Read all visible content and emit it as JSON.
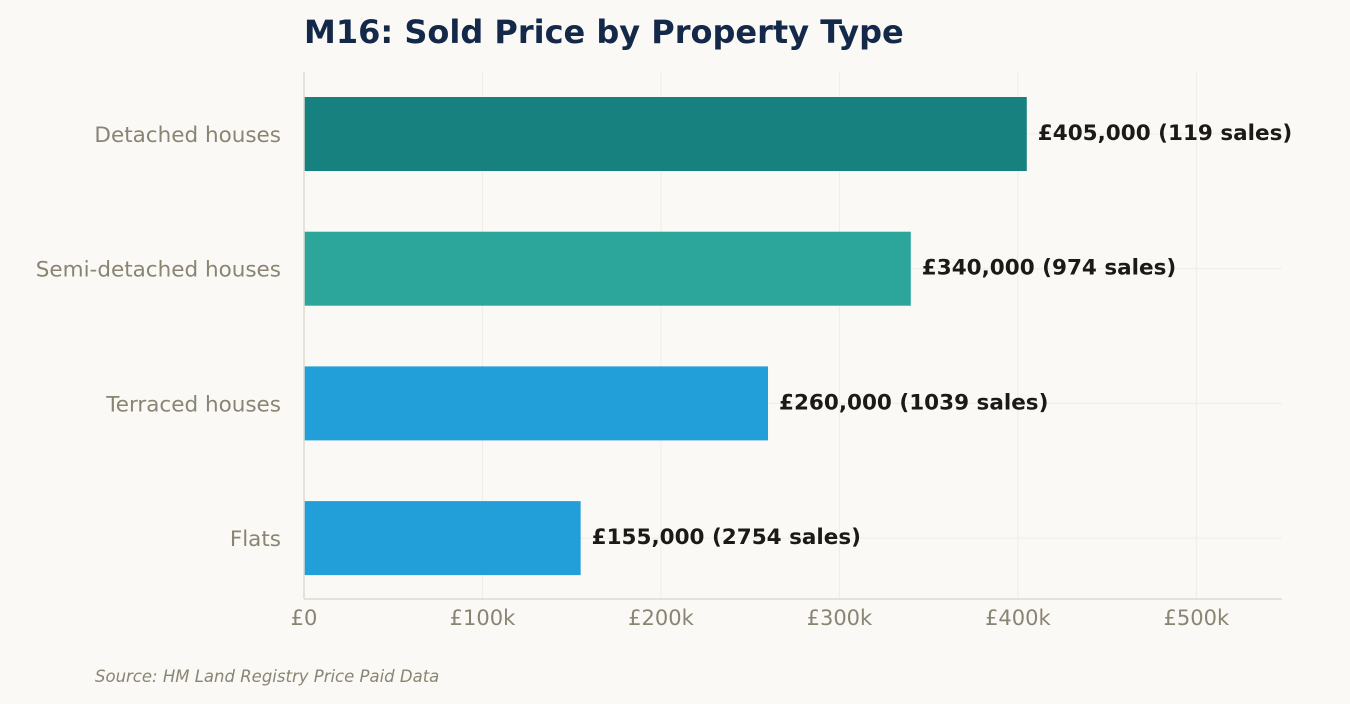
{
  "chart_data": {
    "type": "bar",
    "orientation": "horizontal",
    "title": "M16: Sold Price by Property Type",
    "xlabel": "",
    "ylabel": "",
    "categories": [
      "Detached houses",
      "Semi-detached houses",
      "Terraced houses",
      "Flats"
    ],
    "values": [
      405000,
      340000,
      260000,
      155000
    ],
    "sales": [
      119,
      974,
      1039,
      2754
    ],
    "data_labels": [
      "£405,000  (119 sales)",
      "£340,000  (974 sales)",
      "£260,000  (1039 sales)",
      "£155,000  (2754 sales)"
    ],
    "xlim": [
      0,
      548000
    ],
    "xticks": [
      0,
      100000,
      200000,
      300000,
      400000,
      500000
    ],
    "xtick_labels": [
      "£0",
      "£100k",
      "£200k",
      "£300k",
      "£400k",
      "£500k"
    ],
    "grid": true,
    "legend": "none",
    "source": "Source: HM Land Registry Price Paid Data"
  },
  "colors": {
    "background": "#faf9f5",
    "title": "#14294a",
    "bars": [
      "#178180",
      "#2ca59b",
      "#229fd9",
      "#229fd9"
    ],
    "value_label": "#1c1a17",
    "axis_label": "#8a8473",
    "axis_line": "#dedbd0",
    "grid": "#efede6",
    "source": "#8a8473"
  }
}
